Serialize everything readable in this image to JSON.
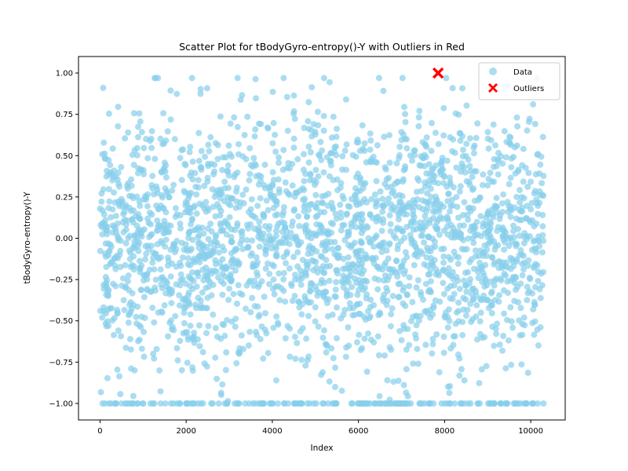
{
  "chart_data": {
    "type": "scatter",
    "title": "Scatter Plot for tBodyGyro-entropy()-Y with Outliers in Red",
    "xlabel": "Index",
    "ylabel": "tBodyGyro-entropy()-Y",
    "xlim": [
      -500,
      10800
    ],
    "ylim": [
      -1.1,
      1.1
    ],
    "x_ticks": [
      0,
      2000,
      4000,
      6000,
      8000,
      10000
    ],
    "x_tick_labels": [
      "0",
      "2000",
      "4000",
      "6000",
      "8000",
      "10000"
    ],
    "y_ticks": [
      -1.0,
      -0.75,
      -0.5,
      -0.25,
      0.0,
      0.25,
      0.5,
      0.75,
      1.0
    ],
    "y_tick_labels": [
      "−1.00",
      "−0.75",
      "−0.50",
      "−0.25",
      "0.00",
      "0.25",
      "0.50",
      "0.75",
      "1.00"
    ],
    "grid": false,
    "legend_position": "top-right",
    "series": [
      {
        "name": "Data",
        "color": "#87CEEB",
        "marker": "circle",
        "x_range": [
          0,
          10298
        ],
        "y_range": [
          -1.0,
          0.97
        ],
        "description_points": "dense cloud spanning full index range; values mostly between -0.75 and 0.75 with a floor of values at -1.00"
      },
      {
        "name": "Outliers",
        "color": "#FF0000",
        "marker": "x",
        "x": [
          7850
        ],
        "y": [
          1.0
        ]
      }
    ]
  }
}
